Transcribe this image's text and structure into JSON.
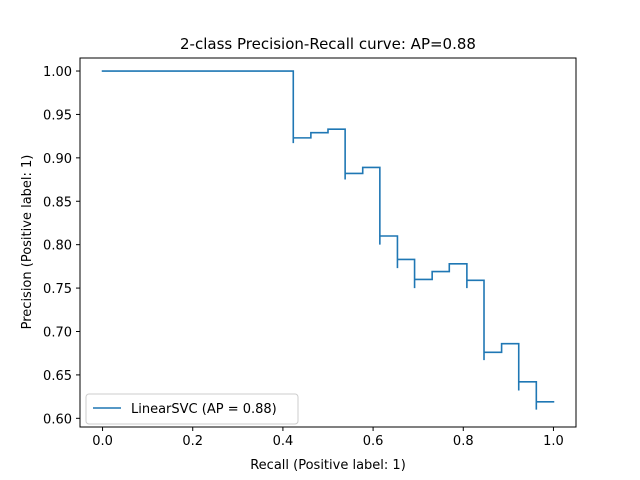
{
  "chart_data": {
    "type": "line",
    "title": "2-class Precision-Recall curve: AP=0.88",
    "xlabel": "Recall (Positive label: 1)",
    "ylabel": "Precision (Positive label: 1)",
    "xlim": [
      -0.05,
      1.05
    ],
    "ylim": [
      0.59,
      1.015
    ],
    "xticks": [
      0.0,
      0.2,
      0.4,
      0.6,
      0.8,
      1.0
    ],
    "xtick_labels": [
      "0.0",
      "0.2",
      "0.4",
      "0.6",
      "0.8",
      "1.0"
    ],
    "yticks": [
      0.6,
      0.65,
      0.7,
      0.75,
      0.8,
      0.85,
      0.9,
      0.95,
      1.0
    ],
    "ytick_labels": [
      "0.60",
      "0.65",
      "0.70",
      "0.75",
      "0.80",
      "0.85",
      "0.90",
      "0.95",
      "1.00"
    ],
    "grid": false,
    "legend": {
      "position": "lower-left",
      "entries": [
        "LinearSVC (AP = 0.88)"
      ]
    },
    "series": [
      {
        "name": "LinearSVC (AP = 0.88)",
        "color": "#1f77b4",
        "drawstyle": "steps-post",
        "points": [
          [
            0.0,
            1.0
          ],
          [
            0.423,
            1.0
          ],
          [
            0.423,
            0.917
          ],
          [
            0.423,
            0.923
          ],
          [
            0.462,
            0.923
          ],
          [
            0.462,
            0.929
          ],
          [
            0.5,
            0.929
          ],
          [
            0.5,
            0.933
          ],
          [
            0.538,
            0.933
          ],
          [
            0.538,
            0.875
          ],
          [
            0.538,
            0.882
          ],
          [
            0.577,
            0.882
          ],
          [
            0.577,
            0.889
          ],
          [
            0.615,
            0.889
          ],
          [
            0.615,
            0.8
          ],
          [
            0.615,
            0.81
          ],
          [
            0.654,
            0.81
          ],
          [
            0.654,
            0.773
          ],
          [
            0.654,
            0.783
          ],
          [
            0.692,
            0.783
          ],
          [
            0.692,
            0.75
          ],
          [
            0.692,
            0.76
          ],
          [
            0.731,
            0.76
          ],
          [
            0.731,
            0.769
          ],
          [
            0.769,
            0.769
          ],
          [
            0.769,
            0.778
          ],
          [
            0.808,
            0.778
          ],
          [
            0.808,
            0.75
          ],
          [
            0.808,
            0.759
          ],
          [
            0.846,
            0.759
          ],
          [
            0.846,
            0.667
          ],
          [
            0.846,
            0.676
          ],
          [
            0.885,
            0.676
          ],
          [
            0.885,
            0.686
          ],
          [
            0.923,
            0.686
          ],
          [
            0.923,
            0.632
          ],
          [
            0.923,
            0.642
          ],
          [
            0.962,
            0.642
          ],
          [
            0.962,
            0.61
          ],
          [
            0.962,
            0.619
          ],
          [
            1.0,
            0.619
          ]
        ]
      }
    ]
  }
}
